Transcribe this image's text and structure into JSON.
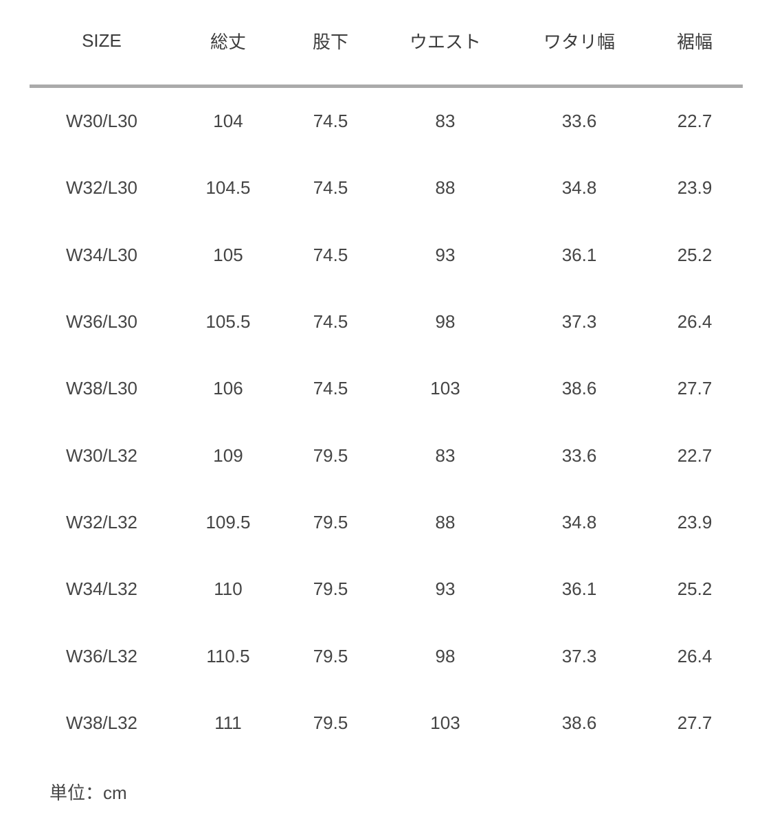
{
  "table": {
    "headers": [
      "SIZE",
      "総丈",
      "股下",
      "ウエスト",
      "ワタリ幅",
      "裾幅"
    ],
    "rows": [
      [
        "W30/L30",
        "104",
        "74.5",
        "83",
        "33.6",
        "22.7"
      ],
      [
        "W32/L30",
        "104.5",
        "74.5",
        "88",
        "34.8",
        "23.9"
      ],
      [
        "W34/L30",
        "105",
        "74.5",
        "93",
        "36.1",
        "25.2"
      ],
      [
        "W36/L30",
        "105.5",
        "74.5",
        "98",
        "37.3",
        "26.4"
      ],
      [
        "W38/L30",
        "106",
        "74.5",
        "103",
        "38.6",
        "27.7"
      ],
      [
        "W30/L32",
        "109",
        "79.5",
        "83",
        "33.6",
        "22.7"
      ],
      [
        "W32/L32",
        "109.5",
        "79.5",
        "88",
        "34.8",
        "23.9"
      ],
      [
        "W34/L32",
        "110",
        "79.5",
        "93",
        "36.1",
        "25.2"
      ],
      [
        "W36/L32",
        "110.5",
        "79.5",
        "98",
        "37.3",
        "26.4"
      ],
      [
        "W38/L32",
        "111",
        "79.5",
        "103",
        "38.6",
        "27.7"
      ]
    ]
  },
  "footnote": "単位：cm"
}
